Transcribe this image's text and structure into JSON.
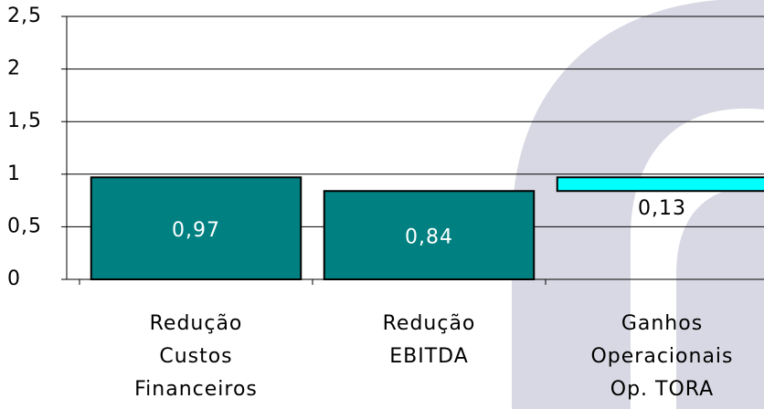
{
  "chart_data": {
    "type": "waterfall",
    "categories": [
      [
        "Redução",
        "Custos",
        "Financeiros"
      ],
      [
        "Redução",
        "EBITDA"
      ],
      [
        "Ganhos",
        "Operacionais",
        "Op. TORA"
      ]
    ],
    "values": [
      0.97,
      0.84,
      0.13
    ],
    "value_labels": [
      "0,97",
      "0,84",
      "0,13"
    ],
    "colors": [
      "#008080",
      "#008080",
      "#00ffff"
    ],
    "base_on_previous": [
      false,
      false,
      true
    ],
    "ylim": [
      0,
      2.5
    ],
    "yticks": [
      0,
      {
        "value": 0.5,
        "label": "0,5"
      },
      1,
      {
        "value": 1.5,
        "label": "1,5"
      },
      2,
      {
        "value": 2.5,
        "label": "2,5"
      }
    ],
    "grid": true
  }
}
